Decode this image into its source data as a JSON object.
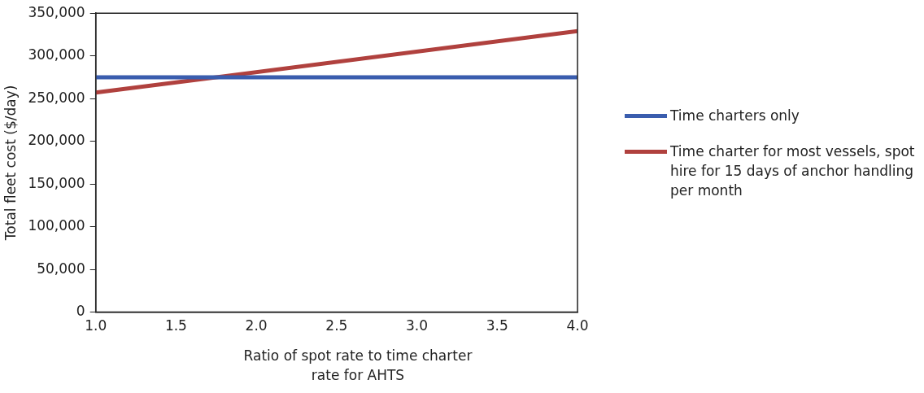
{
  "chart_data": {
    "type": "line",
    "xlabel": "Ratio of spot rate to time charter rate for AHTS",
    "ylabel": "Total fleet cost ($/day)",
    "x": [
      1.0,
      4.0
    ],
    "series": [
      {
        "name": "Time charters only",
        "color": "#3a5dae",
        "values": [
          275000,
          275000
        ]
      },
      {
        "name": "Time charter for most vessels, spot hire for 15 days of anchor handling per month",
        "color": "#b0413e",
        "values": [
          257000,
          329000
        ]
      }
    ],
    "xlim": [
      1.0,
      4.0
    ],
    "xticks": [
      {
        "value": 1.0,
        "label": "1.0"
      },
      {
        "value": 1.5,
        "label": "1.5"
      },
      {
        "value": 2.0,
        "label": "2.0"
      },
      {
        "value": 2.5,
        "label": "2.5"
      },
      {
        "value": 3.0,
        "label": "3.0"
      },
      {
        "value": 3.5,
        "label": "3.5"
      },
      {
        "value": 4.0,
        "label": "4.0"
      }
    ],
    "ylim": [
      0,
      350000
    ],
    "yticks": [
      {
        "value": 0,
        "label": "0"
      },
      {
        "value": 50000,
        "label": "50,000"
      },
      {
        "value": 100000,
        "label": "100,000"
      },
      {
        "value": 150000,
        "label": "150,000"
      },
      {
        "value": 200000,
        "label": "200,000"
      },
      {
        "value": 250000,
        "label": "250,000"
      },
      {
        "value": 300000,
        "label": "300,000"
      },
      {
        "value": 350000,
        "label": "350,000"
      }
    ],
    "grid": false,
    "legend": "right",
    "marker": "none",
    "line_style": "solid"
  }
}
